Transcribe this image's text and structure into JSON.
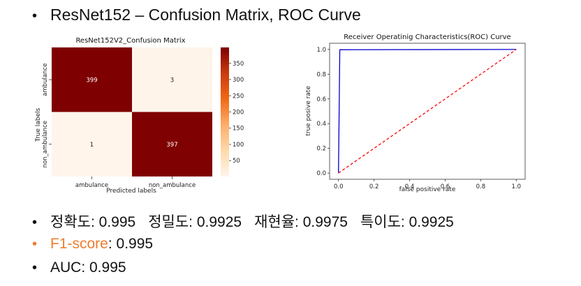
{
  "slide": {
    "title": "ResNet152 – Confusion Matrix, ROC Curve",
    "bullet": "•"
  },
  "metrics": {
    "items": [
      {
        "label": "정확도",
        "value": "0.995"
      },
      {
        "label": "정밀도",
        "value": "0.9925"
      },
      {
        "label": "재현율",
        "value": "0.9975"
      },
      {
        "label": "특이도",
        "value": "0.9925"
      }
    ],
    "separator": ": ",
    "f1_label": "F1-score",
    "f1_value": ": 0.995",
    "auc_text": "AUC: 0.995"
  },
  "colors": {
    "accent_orange": "#ed7d31",
    "heat_high": "#7f0000",
    "heat_low": "#fff5eb",
    "roc_line": "#0000cc",
    "diag_line": "#ff0000"
  },
  "chart_data": [
    {
      "type": "heatmap",
      "title": "ResNet152V2_Confusion Matrix",
      "xlabel": "Predicted labels",
      "ylabel": "True labels",
      "x_categories": [
        "ambulance",
        "non_ambulance"
      ],
      "y_categories": [
        "ambulance",
        "non_ambulance"
      ],
      "values": [
        [
          399,
          3
        ],
        [
          1,
          397
        ]
      ],
      "colorbar": {
        "min": 1,
        "max": 399,
        "ticks": [
          50,
          100,
          150,
          200,
          250,
          300,
          350
        ],
        "colormap": "OrRd"
      }
    },
    {
      "type": "line",
      "title": "Receiver Operatinig Characteristics(ROC) Curve",
      "xlabel": "false positive rate",
      "ylabel": "true posive rate",
      "xlim": [
        0.0,
        1.0
      ],
      "ylim": [
        0.0,
        1.0
      ],
      "xticks": [
        "0.0",
        "0.2",
        "0.4",
        "0.6",
        "0.8",
        "1.0"
      ],
      "yticks": [
        "0.0",
        "0.2",
        "0.4",
        "0.6",
        "0.8",
        "1.0"
      ],
      "series": [
        {
          "style": "solid",
          "color": "#0000cc",
          "x": [
            0.0,
            0.0075,
            1.0
          ],
          "y": [
            0.0,
            0.9975,
            1.0
          ]
        },
        {
          "style": "dashed",
          "color": "#ff0000",
          "x": [
            0.0,
            1.0
          ],
          "y": [
            0.0,
            1.0
          ]
        }
      ]
    }
  ]
}
